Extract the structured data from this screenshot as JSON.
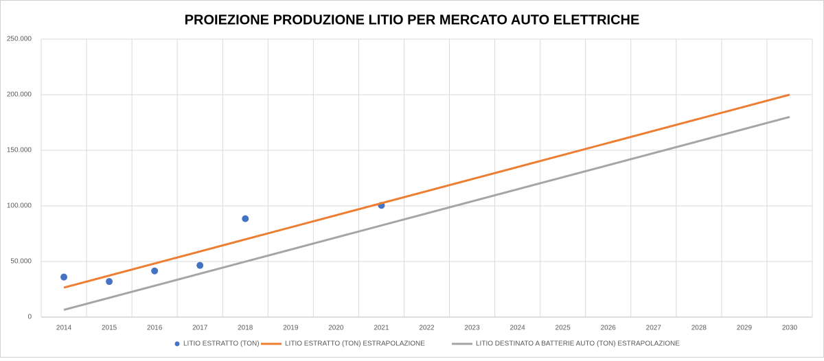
{
  "chart_data": {
    "type": "scatter",
    "title": "PROIEZIONE PRODUZIONE LITIO PER MERCATO AUTO ELETTRICHE",
    "xlim": [
      2013.5,
      2030.5
    ],
    "xticks": [
      2014,
      2015,
      2016,
      2017,
      2018,
      2019,
      2020,
      2021,
      2022,
      2023,
      2024,
      2025,
      2026,
      2027,
      2028,
      2029,
      2030
    ],
    "ylim": [
      0,
      250000
    ],
    "yticks": [
      0,
      {
        "value": 50000,
        "label": "50.000"
      },
      {
        "value": 100000,
        "label": "100.000"
      },
      {
        "value": 150000,
        "label": "150.000"
      },
      {
        "value": 200000,
        "label": "200.000"
      },
      {
        "value": 250000,
        "label": "250.000"
      }
    ],
    "grid": true,
    "legend": "bottom",
    "series": [
      {
        "name": "LITIO ESTRATTO (TON)",
        "color": "#4472c4",
        "mark": "point",
        "x": [
          2014,
          2015,
          2016,
          2017,
          2018,
          2021
        ],
        "values": [
          36000,
          32000,
          41500,
          46500,
          88500,
          100500
        ]
      },
      {
        "name": "LITIO ESTRATTO (TON) ESTRAPOLAZIONE",
        "color": "#ed7d31",
        "mark": "line",
        "x": [
          2014,
          2030
        ],
        "values": [
          26500,
          200000
        ]
      },
      {
        "name": "LITIO DESTINATO A BATTERIE AUTO (TON) ESTRAPOLAZIONE",
        "color": "#a5a5a5",
        "mark": "line",
        "x": [
          2014,
          2030
        ],
        "values": [
          6500,
          180000
        ]
      }
    ]
  }
}
